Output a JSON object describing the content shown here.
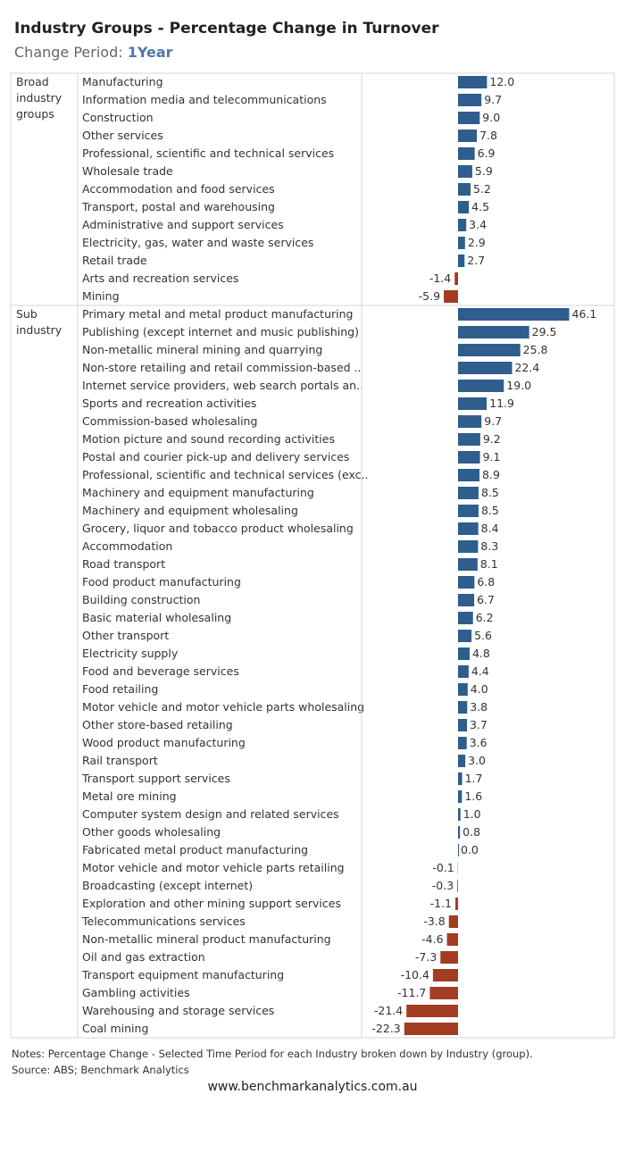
{
  "title": "Industry Groups - Percentage Change in Turnover",
  "subtitle_label": "Change Period: ",
  "subtitle_value": "1Year",
  "notes": "Notes: Percentage Change - Selected Time Period for each Industry broken down by Industry (group).",
  "source": "Source: ABS; Benchmark Analytics",
  "website": "www.benchmarkanalytics.com.au",
  "colors": {
    "positive": "#2e5d8e",
    "negative": "#a23c22"
  },
  "chart_data": {
    "type": "bar",
    "orientation": "horizontal",
    "groups": [
      {
        "name": "Broad industry groups",
        "label_lines": [
          "Broad",
          "industry",
          "groups"
        ],
        "categories": [
          "Manufacturing",
          "Information media and telecommunications",
          "Construction",
          "Other services",
          "Professional, scientific and technical services",
          "Wholesale trade",
          "Accommodation and food services",
          "Transport, postal and warehousing",
          "Administrative and support services",
          "Electricity, gas, water and waste services",
          "Retail trade",
          "Arts and recreation services",
          "Mining"
        ],
        "values": [
          12.0,
          9.7,
          9.0,
          7.8,
          6.9,
          5.9,
          5.2,
          4.5,
          3.4,
          2.9,
          2.7,
          -1.4,
          -5.9
        ]
      },
      {
        "name": "Sub industry",
        "label_lines": [
          "Sub",
          "industry"
        ],
        "categories": [
          "Primary metal and metal product manufacturing",
          "Publishing (except internet and music publishing)",
          "Non-metallic mineral mining and quarrying",
          "Non-store retailing and retail commission-based ..",
          "Internet service providers, web search portals an..",
          "Sports and recreation activities",
          "Commission-based wholesaling",
          "Motion picture and sound recording activities",
          "Postal and courier pick-up and delivery services",
          "Professional, scientific and technical services (exc..",
          "Machinery and equipment manufacturing",
          "Machinery and equipment wholesaling",
          "Grocery, liquor and tobacco product wholesaling",
          "Accommodation",
          "Road transport",
          "Food product manufacturing",
          "Building construction",
          "Basic material wholesaling",
          "Other transport",
          "Electricity supply",
          "Food and beverage services",
          "Food retailing",
          "Motor vehicle and motor vehicle parts wholesaling",
          "Other store-based retailing",
          "Wood product manufacturing",
          "Rail transport",
          "Transport support services",
          "Metal ore mining",
          "Computer system design and related services",
          "Other goods wholesaling",
          "Fabricated metal product manufacturing",
          "Motor vehicle and motor vehicle parts retailing",
          "Broadcasting (except internet)",
          "Exploration and other mining support services",
          "Telecommunications services",
          "Non-metallic mineral product manufacturing",
          "Oil and gas extraction",
          "Transport equipment manufacturing",
          "Gambling activities",
          "Warehousing and storage services",
          "Coal mining"
        ],
        "values": [
          46.1,
          29.5,
          25.8,
          22.4,
          19.0,
          11.9,
          9.7,
          9.2,
          9.1,
          8.9,
          8.5,
          8.5,
          8.4,
          8.3,
          8.1,
          6.8,
          6.7,
          6.2,
          5.6,
          4.8,
          4.4,
          4.0,
          3.8,
          3.7,
          3.6,
          3.0,
          1.7,
          1.6,
          1.0,
          0.8,
          0.0,
          -0.1,
          -0.3,
          -1.1,
          -3.8,
          -4.6,
          -7.3,
          -10.4,
          -11.7,
          -21.4,
          -22.3
        ]
      }
    ],
    "value_format": "one decimal",
    "grid": false,
    "legend": "none"
  }
}
